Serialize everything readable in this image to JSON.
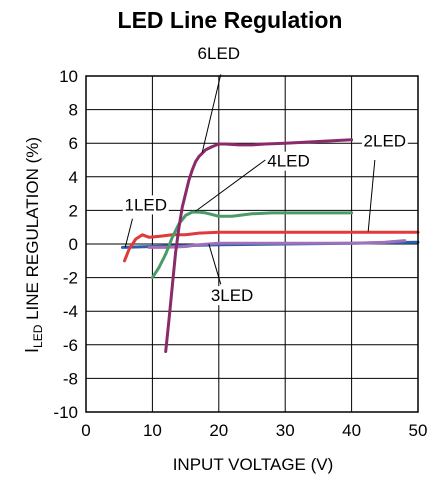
{
  "chart_data": {
    "type": "line",
    "title": "LED Line Regulation",
    "xlabel": "INPUT VOLTAGE (V)",
    "ylabel": {
      "main": "I",
      "sub": "LED",
      "rest": " LINE REGULATION (%)"
    },
    "xlim": [
      0,
      50
    ],
    "ylim": [
      -10,
      10
    ],
    "xticks": [
      0,
      10,
      20,
      30,
      40,
      50
    ],
    "yticks": [
      -10,
      -8,
      -6,
      -4,
      -2,
      0,
      2,
      4,
      6,
      8,
      10
    ],
    "grid": true,
    "series": [
      {
        "name": "1LED",
        "color": "#2b5fae",
        "x": [
          5.5,
          10,
          20,
          30,
          40,
          50
        ],
        "y": [
          -0.2,
          -0.15,
          -0.05,
          0.0,
          0.05,
          0.1
        ]
      },
      {
        "name": "2LED",
        "color": "#e03a3a",
        "x": [
          5.8,
          6.5,
          7.5,
          8.5,
          9.5,
          11,
          13,
          15,
          17,
          20,
          30,
          40,
          50
        ],
        "y": [
          -1.0,
          -0.3,
          0.3,
          0.55,
          0.4,
          0.45,
          0.55,
          0.55,
          0.65,
          0.7,
          0.7,
          0.7,
          0.7
        ]
      },
      {
        "name": "3LED",
        "color": "#a070b8",
        "x": [
          9.5,
          12,
          15,
          17,
          20,
          25,
          30,
          40,
          45,
          48
        ],
        "y": [
          -0.2,
          -0.2,
          -0.15,
          -0.05,
          0.05,
          0.05,
          0.05,
          0.05,
          0.1,
          0.2
        ]
      },
      {
        "name": "4LED",
        "color": "#4a9a6a",
        "x": [
          10,
          11,
          12,
          13,
          14,
          15,
          16,
          17,
          18,
          19,
          20,
          22,
          25,
          28,
          30,
          35,
          40
        ],
        "y": [
          -2.0,
          -1.4,
          -0.6,
          0.4,
          1.2,
          1.7,
          1.9,
          1.9,
          1.85,
          1.75,
          1.65,
          1.65,
          1.8,
          1.85,
          1.85,
          1.85,
          1.85
        ]
      },
      {
        "name": "6LED",
        "color": "#8a2a6a",
        "x": [
          12,
          12.5,
          13,
          13.5,
          14,
          14.5,
          15,
          15.5,
          16,
          16.5,
          17,
          17.5,
          18,
          19,
          20,
          21,
          23,
          25,
          27,
          30,
          35,
          40
        ],
        "y": [
          -6.4,
          -4.5,
          -2.5,
          -0.5,
          1.0,
          2.2,
          3.0,
          3.8,
          4.4,
          4.9,
          5.2,
          5.4,
          5.6,
          5.8,
          5.95,
          5.95,
          5.9,
          5.9,
          5.95,
          6.0,
          6.1,
          6.2
        ]
      }
    ],
    "annotations": [
      {
        "label": "1LED"
      },
      {
        "label": "2LED"
      },
      {
        "label": "3LED"
      },
      {
        "label": "4LED"
      },
      {
        "label": "6LED"
      }
    ]
  }
}
